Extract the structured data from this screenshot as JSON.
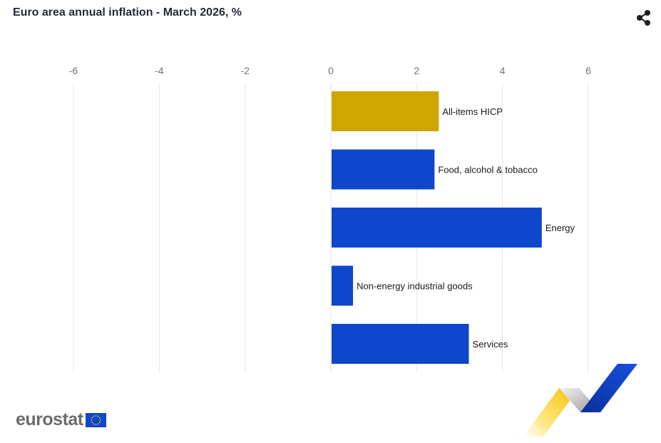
{
  "header": {
    "title": "Euro area annual inflation - March 2026, %"
  },
  "icons": {
    "share": "share-icon",
    "flag": "eu-flag-icon",
    "decoration": "eurostat-ribbon-decoration"
  },
  "logo": {
    "text": "eurostat"
  },
  "colors": {
    "highlight": "#cfa600",
    "series": "#0e47cb",
    "grid": "#e6e6e6",
    "flag_blue": "#0e47cb",
    "flag_star": "#ffd617"
  },
  "chart_data": {
    "type": "bar",
    "orientation": "horizontal",
    "title": "Euro area annual inflation - March 2026, %",
    "xlabel": "",
    "ylabel": "",
    "xlim": [
      -6,
      6
    ],
    "xticks": [
      "-6",
      "-4",
      "-2",
      "0",
      "2",
      "4",
      "6"
    ],
    "grid": true,
    "legend": "none",
    "categories": [
      "All-items HICP",
      "Food, alcohol & tobacco",
      "Energy",
      "Non-energy industrial goods",
      "Services"
    ],
    "values": [
      2.5,
      2.4,
      4.9,
      0.5,
      3.2
    ],
    "bar_colors": [
      "#cfa600",
      "#0e47cb",
      "#0e47cb",
      "#0e47cb",
      "#0e47cb"
    ]
  }
}
